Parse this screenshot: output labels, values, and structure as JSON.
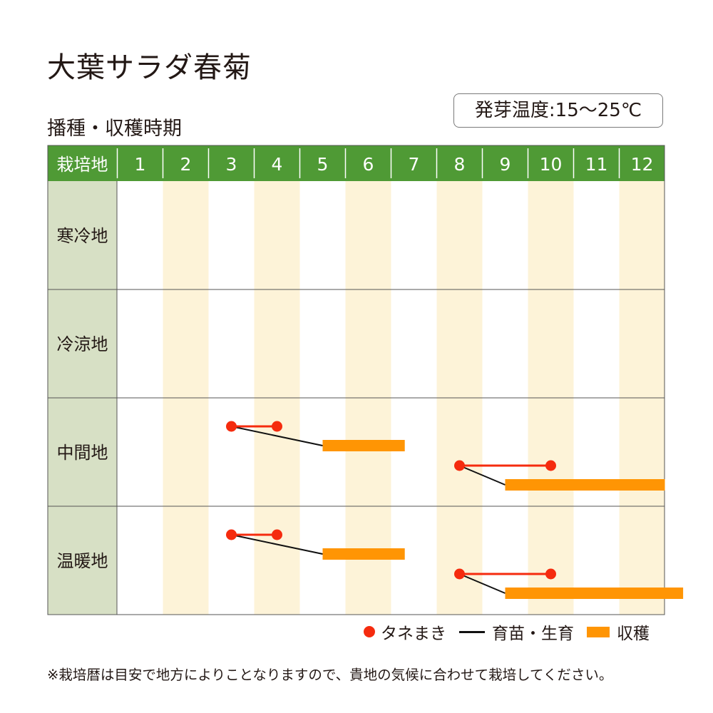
{
  "page": {
    "title": "大葉サラダ春菊",
    "subtitle": "播種・収穫時期",
    "temperature": "発芽温度:15〜25℃",
    "note": "※栽培暦は目安で地方によりことなりますので、貴地の気候に合わせて栽培してください。"
  },
  "legend": {
    "sowing": "タネまき",
    "nursery": "育苗・生育",
    "harvest": "収穫"
  },
  "colors": {
    "header_green": "#4f9a35",
    "row_header_bg": "#d7e0c5",
    "stripe": "#fdf3d8",
    "sowing_red": "#f52b0e",
    "growth_black": "#111111",
    "harvest_orange": "#ff9504"
  },
  "chart_data": {
    "type": "table",
    "corner_label": "栽培地",
    "months": [
      "1",
      "2",
      "3",
      "4",
      "5",
      "6",
      "7",
      "8",
      "9",
      "10",
      "11",
      "12"
    ],
    "regions": [
      {
        "name": "寒冷地",
        "schedules": []
      },
      {
        "name": "冷涼地",
        "schedules": []
      },
      {
        "name": "中間地",
        "schedules": [
          {
            "sowing": [
              3.0,
              4.0
            ],
            "growth": [
              3.0,
              5.0
            ],
            "harvest": [
              5.0,
              6.8
            ]
          },
          {
            "sowing": [
              8.0,
              10.0
            ],
            "growth": [
              8.0,
              9.0
            ],
            "harvest": [
              9.0,
              12.5
            ]
          }
        ]
      },
      {
        "name": "温暖地",
        "schedules": [
          {
            "sowing": [
              3.0,
              4.0
            ],
            "growth": [
              3.0,
              5.0
            ],
            "harvest": [
              5.0,
              6.8
            ]
          },
          {
            "sowing": [
              8.0,
              10.0
            ],
            "growth": [
              8.0,
              9.0
            ],
            "harvest": [
              9.0,
              12.9
            ]
          }
        ]
      }
    ]
  }
}
